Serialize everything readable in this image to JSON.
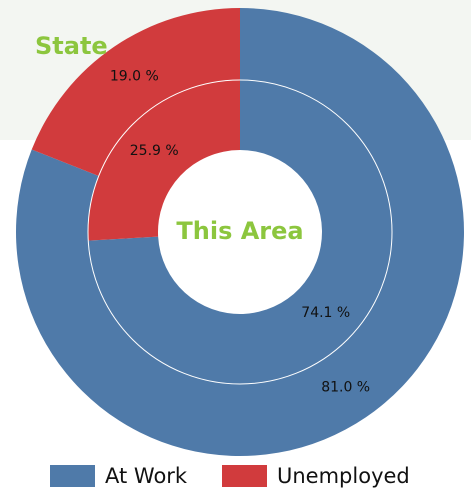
{
  "chart_data": {
    "type": "donut",
    "categories": [
      "At Work",
      "Unemployed"
    ],
    "colors": [
      "#4f7aa9",
      "#d13b3d"
    ],
    "rings": [
      {
        "name": "State",
        "values": [
          81.0,
          19.0
        ],
        "value_labels": [
          "81.0 %",
          "19.0 %"
        ]
      },
      {
        "name": "This Area",
        "values": [
          74.1,
          25.9
        ],
        "value_labels": [
          "74.1 %",
          "25.9 %"
        ]
      }
    ]
  }
}
